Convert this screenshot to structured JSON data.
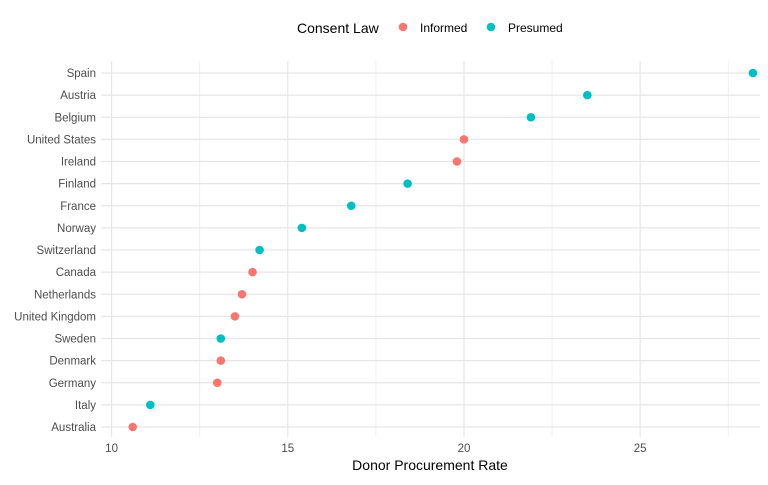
{
  "chart_data": {
    "type": "scatter",
    "title": "",
    "xlabel": "Donor Procurement Rate",
    "ylabel": "",
    "xlim": [
      9.7,
      28.4
    ],
    "x_ticks": [
      10,
      15,
      20,
      25
    ],
    "grid": true,
    "legend": {
      "position": "top",
      "title": "Consent Law",
      "entries": [
        {
          "label": "Informed",
          "color": "#F8766D"
        },
        {
          "label": "Presumed",
          "color": "#00BFC4"
        }
      ]
    },
    "categories": [
      "Spain",
      "Austria",
      "Belgium",
      "United States",
      "Ireland",
      "Finland",
      "France",
      "Norway",
      "Switzerland",
      "Canada",
      "Netherlands",
      "United Kingdom",
      "Sweden",
      "Denmark",
      "Germany",
      "Italy",
      "Australia"
    ],
    "points": [
      {
        "country": "Spain",
        "value": 28.2,
        "law": "Presumed"
      },
      {
        "country": "Austria",
        "value": 23.5,
        "law": "Presumed"
      },
      {
        "country": "Belgium",
        "value": 21.9,
        "law": "Presumed"
      },
      {
        "country": "United States",
        "value": 20.0,
        "law": "Informed"
      },
      {
        "country": "Ireland",
        "value": 19.8,
        "law": "Informed"
      },
      {
        "country": "Finland",
        "value": 18.4,
        "law": "Presumed"
      },
      {
        "country": "France",
        "value": 16.8,
        "law": "Presumed"
      },
      {
        "country": "Norway",
        "value": 15.4,
        "law": "Presumed"
      },
      {
        "country": "Switzerland",
        "value": 14.2,
        "law": "Presumed"
      },
      {
        "country": "Canada",
        "value": 14.0,
        "law": "Informed"
      },
      {
        "country": "Netherlands",
        "value": 13.7,
        "law": "Informed"
      },
      {
        "country": "United Kingdom",
        "value": 13.5,
        "law": "Informed"
      },
      {
        "country": "Sweden",
        "value": 13.1,
        "law": "Presumed"
      },
      {
        "country": "Denmark",
        "value": 13.1,
        "law": "Informed"
      },
      {
        "country": "Germany",
        "value": 13.0,
        "law": "Informed"
      },
      {
        "country": "Italy",
        "value": 11.1,
        "law": "Presumed"
      },
      {
        "country": "Australia",
        "value": 10.6,
        "law": "Informed"
      }
    ]
  }
}
